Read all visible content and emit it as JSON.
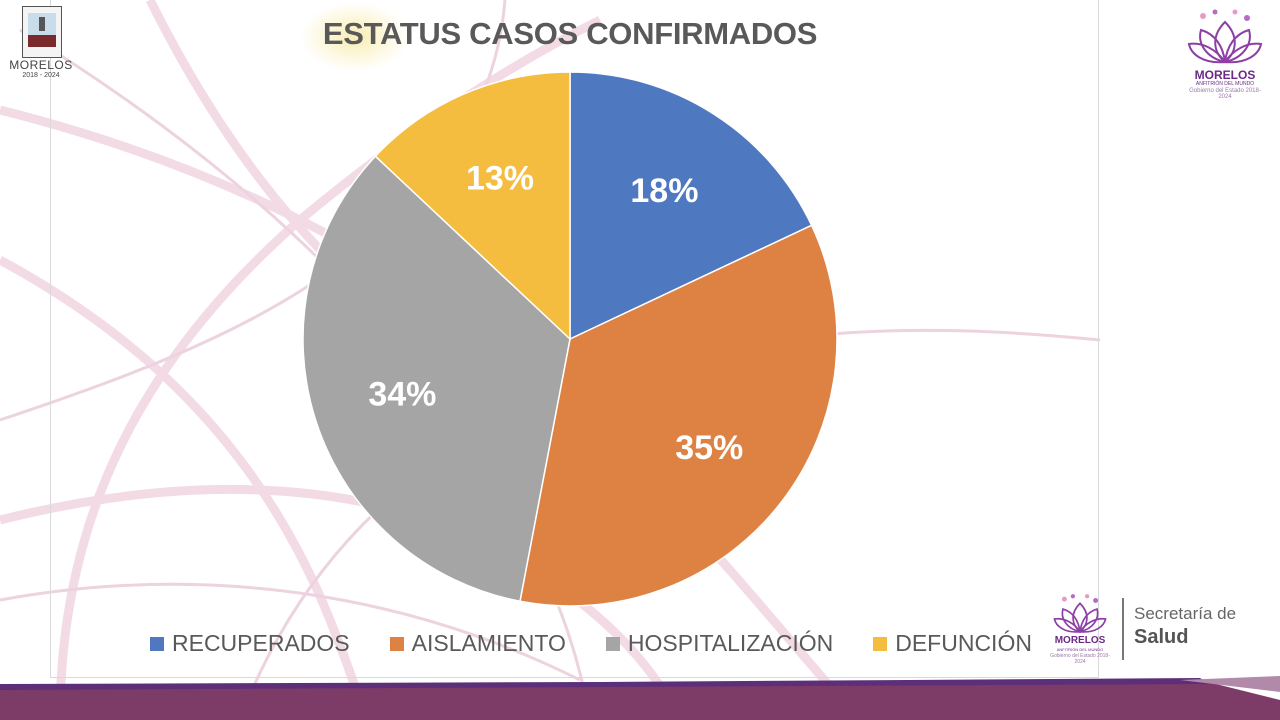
{
  "slide": {
    "left_logo": {
      "name": "MORELOS",
      "years": "2018 - 2024"
    },
    "right_logo": {
      "brand": "MORELOS",
      "tagline": "ANFITRIÓN DEL MUNDO",
      "subtitle": "Gobierno del Estado 2018-2024"
    },
    "bottom_logo": {
      "brand": "MORELOS",
      "tagline": "ANFITRIÓN DEL MUNDO",
      "subtitle": "Gobierno del Estado 2018-2024",
      "secretaria_line1": "Secretaría de",
      "secretaria_line2": "Salud"
    },
    "colors": {
      "accent": "#6b2a86",
      "ribbon": "#7d3b68"
    }
  },
  "chart_data": {
    "type": "pie",
    "title": "ESTATUS CASOS CONFIRMADOS",
    "categories": [
      "RECUPERADOS",
      "AISLAMIENTO",
      "HOSPITALIZACIÓN",
      "DEFUNCIÓN"
    ],
    "values": [
      18,
      35,
      34,
      13
    ],
    "labels": [
      "18%",
      "35%",
      "34%",
      "13%"
    ],
    "colors": [
      "#4e78c0",
      "#de8244",
      "#a5a5a5",
      "#f4bd40"
    ],
    "start_angle": "12 o'clock",
    "direction": "clockwise",
    "legend_position": "bottom"
  }
}
